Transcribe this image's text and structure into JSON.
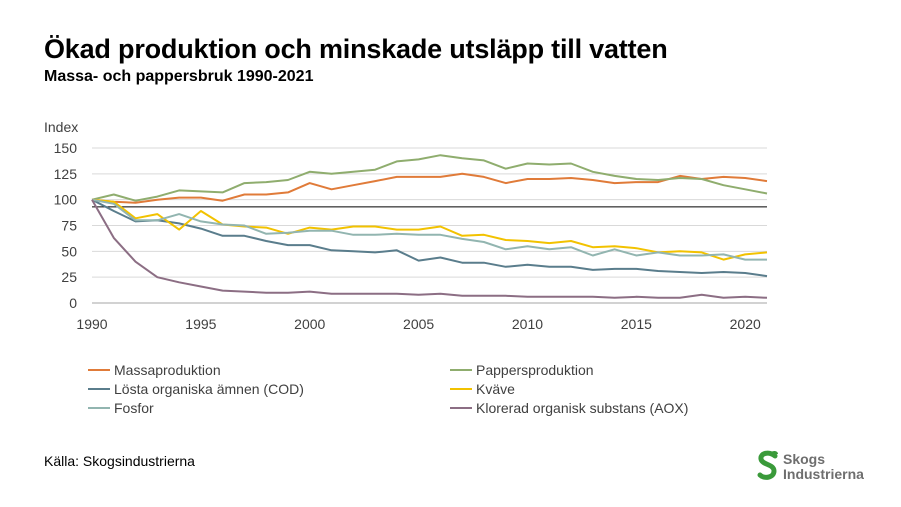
{
  "header": {
    "title": "Ökad produktion och minskade utsläpp till vatten",
    "subtitle": "Massa- och pappersbruk 1990-2021"
  },
  "source": "Källa: Skogsindustrierna",
  "logo": {
    "line1": "Skogs",
    "line2": "Industrierna",
    "icon": "s-leaf-icon",
    "color": "#3a9a3a"
  },
  "chart_data": {
    "type": "line",
    "ylabel": "Index",
    "xlabel": "",
    "xlim": [
      1990,
      2021
    ],
    "ylim": [
      0,
      150
    ],
    "x_ticks": [
      1990,
      1995,
      2000,
      2005,
      2010,
      2015,
      2020
    ],
    "y_ticks": [
      0,
      25,
      50,
      75,
      100,
      125,
      150
    ],
    "grid": "horizontal",
    "reference_line": 93,
    "legend_position": "bottom",
    "x": [
      1990,
      1991,
      1992,
      1993,
      1994,
      1995,
      1996,
      1997,
      1998,
      1999,
      2000,
      2001,
      2002,
      2003,
      2004,
      2005,
      2006,
      2007,
      2008,
      2009,
      2010,
      2011,
      2012,
      2013,
      2014,
      2015,
      2016,
      2017,
      2018,
      2019,
      2020,
      2021
    ],
    "series": [
      {
        "name": "Massaproduktion",
        "color": "#e07b39",
        "values": [
          100,
          98,
          97,
          100,
          102,
          102,
          99,
          105,
          105,
          107,
          116,
          110,
          114,
          118,
          122,
          122,
          122,
          125,
          122,
          116,
          120,
          120,
          121,
          119,
          116,
          117,
          117,
          123,
          120,
          122,
          121,
          118
        ]
      },
      {
        "name": "Pappersproduktion",
        "color": "#8fad6e",
        "values": [
          100,
          105,
          99,
          103,
          109,
          108,
          107,
          116,
          117,
          119,
          127,
          125,
          127,
          129,
          137,
          139,
          143,
          140,
          138,
          130,
          135,
          134,
          135,
          127,
          123,
          120,
          119,
          121,
          120,
          114,
          110,
          106
        ]
      },
      {
        "name": "Lösta organiska ämnen (COD)",
        "color": "#5a7d8c",
        "values": [
          100,
          89,
          79,
          80,
          77,
          72,
          65,
          65,
          60,
          56,
          56,
          51,
          50,
          49,
          51,
          41,
          44,
          39,
          39,
          35,
          37,
          35,
          35,
          32,
          33,
          33,
          31,
          30,
          29,
          30,
          29,
          26
        ]
      },
      {
        "name": "Kväve",
        "color": "#f2c200",
        "values": [
          100,
          98,
          82,
          86,
          71,
          89,
          76,
          74,
          73,
          67,
          73,
          71,
          74,
          74,
          71,
          71,
          74,
          65,
          66,
          61,
          60,
          58,
          60,
          54,
          55,
          53,
          49,
          50,
          49,
          42,
          47,
          49
        ]
      },
      {
        "name": "Fosfor",
        "color": "#92b5b0",
        "values": [
          100,
          96,
          80,
          80,
          86,
          79,
          76,
          75,
          67,
          68,
          70,
          70,
          66,
          66,
          67,
          66,
          66,
          62,
          59,
          52,
          55,
          52,
          54,
          46,
          52,
          46,
          49,
          46,
          46,
          47,
          42,
          42
        ]
      },
      {
        "name": "Klorerad organisk substans (AOX)",
        "color": "#8c6e84",
        "values": [
          100,
          63,
          40,
          25,
          20,
          16,
          12,
          11,
          10,
          10,
          11,
          9,
          9,
          9,
          9,
          8,
          9,
          7,
          7,
          7,
          6,
          6,
          6,
          6,
          5,
          6,
          5,
          5,
          8,
          5,
          6,
          5
        ]
      }
    ]
  }
}
